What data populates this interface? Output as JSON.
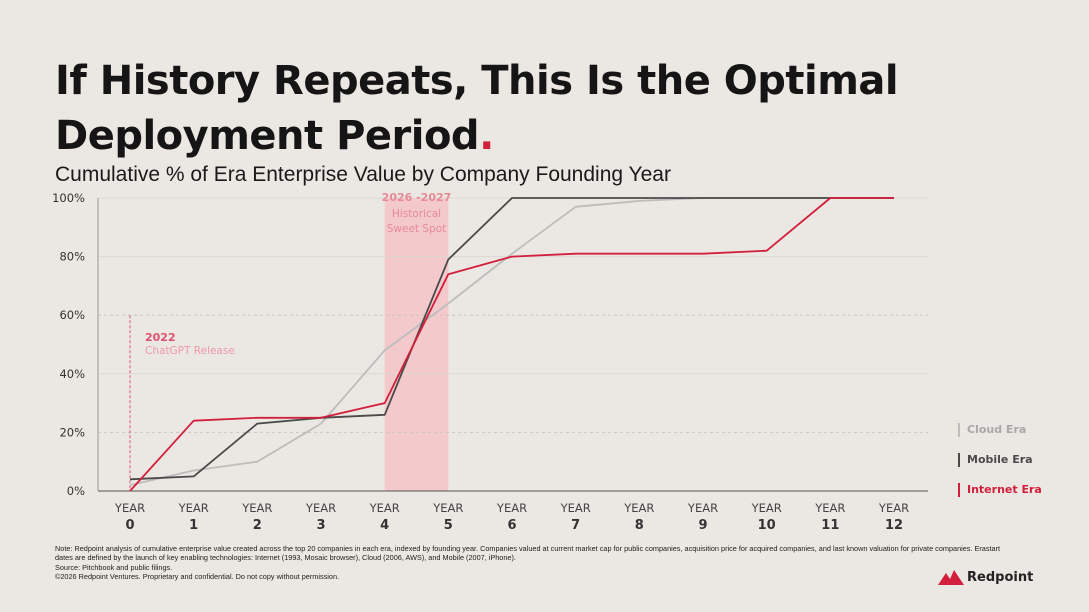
{
  "title_main": "If History Repeats, This Is the Optimal Deployment Period",
  "title_dot": ".",
  "subtitle": "Cumulative % of Era Enterprise Value by Company Founding Year",
  "chart_data": {
    "type": "line",
    "title": "Cumulative % of Era Enterprise Value by Company Founding Year",
    "xlabel": "",
    "ylabel": "",
    "x": [
      0,
      1,
      2,
      3,
      4,
      5,
      6,
      7,
      8,
      9,
      10,
      11,
      12
    ],
    "x_tick_labels": [
      {
        "top": "YEAR",
        "bottom": "0"
      },
      {
        "top": "YEAR",
        "bottom": "1"
      },
      {
        "top": "YEAR",
        "bottom": "2"
      },
      {
        "top": "YEAR",
        "bottom": "3"
      },
      {
        "top": "YEAR",
        "bottom": "4"
      },
      {
        "top": "YEAR",
        "bottom": "5"
      },
      {
        "top": "YEAR",
        "bottom": "6"
      },
      {
        "top": "YEAR",
        "bottom": "7"
      },
      {
        "top": "YEAR",
        "bottom": "8"
      },
      {
        "top": "YEAR",
        "bottom": "9"
      },
      {
        "top": "YEAR",
        "bottom": "10"
      },
      {
        "top": "YEAR",
        "bottom": "11"
      },
      {
        "top": "YEAR",
        "bottom": "12"
      }
    ],
    "y_ticks": [
      0,
      20,
      40,
      60,
      80,
      100
    ],
    "y_tick_labels": [
      "0%",
      "20%",
      "40%",
      "60%",
      "80%",
      "100%"
    ],
    "xlim": [
      0,
      12
    ],
    "ylim": [
      0,
      100
    ],
    "grid": "horizontal dashed at 20% and 60%",
    "series": [
      {
        "name": "Cloud Era",
        "color": "#bdbdbd",
        "values": [
          2,
          7,
          10,
          23,
          48,
          64,
          81,
          97,
          99,
          100,
          100,
          100,
          100
        ]
      },
      {
        "name": "Mobile Era",
        "color": "#4a4a4a",
        "values": [
          4,
          5,
          23,
          25,
          26,
          79,
          100,
          100,
          100,
          100,
          100,
          100,
          100
        ]
      },
      {
        "name": "Internet Era",
        "color": "#d21f3c",
        "values": [
          0,
          24,
          25,
          25,
          30,
          74,
          80,
          81,
          81,
          81,
          82,
          100,
          100
        ]
      }
    ],
    "annotations": [
      {
        "id": "sweet_spot",
        "type": "band",
        "x_from": 4,
        "x_to": 5,
        "label_line1": "2026 -2027",
        "label_line2": "Historical",
        "label_line3": "Sweet Spot",
        "color": "#f4c3c8",
        "text_color": "#e78a98"
      },
      {
        "id": "chatgpt",
        "type": "vline",
        "x": 0,
        "y_top": 60,
        "label_line1": "2022",
        "label_line2": "ChatGPT Release",
        "color": "#e05070"
      }
    ]
  },
  "legend": [
    {
      "label": "Cloud Era",
      "color": "#bdbdbd"
    },
    {
      "label": "Mobile Era",
      "color": "#4a4a4a"
    },
    {
      "label": "Internet Era",
      "color": "#d21f3c"
    }
  ],
  "footnote": {
    "line1": "Note: Redpoint analysis of cumulative enterprise value created across the top 20 companies in each era, indexed by founding year. Companies valued at current market cap for public companies, acquisition price for acquired companies, and last known valuation for private companies. Erastart",
    "line2": "dates are defined by the launch of key enabling technologies: Internet (1993, Mosaic browser), Cloud (2006, AWS), and Mobile (2007, iPhone).",
    "line3": "Source: Pitchbook and public filings.",
    "line4": "©2026 Redpoint Ventures. Proprietary and confidential. Do not copy without permission."
  },
  "logo": {
    "name": "Redpoint",
    "icon": "mountain-icon",
    "color": "#d21f3c"
  }
}
